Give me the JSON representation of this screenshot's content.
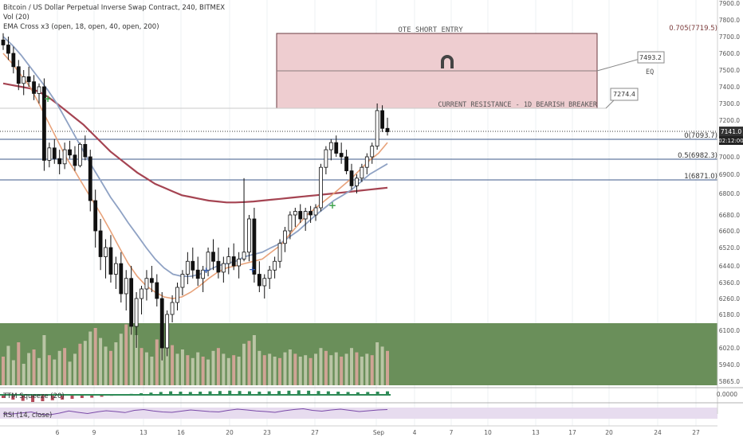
{
  "header": {
    "symbol_line": "Bitcoin / US Dollar Perpetual Inverse Swap Contract, 240, BITMEX",
    "indicator_volume": "Vol (20)",
    "indicator_ema": "EMA Cross x3 (open, 18, open, 40, open, 200)"
  },
  "sub_panes": {
    "ttm_squeeze_label": "TTM Squeeze (20)",
    "rsi_label": "RSI (14, close)",
    "ttm_value": "0.0000"
  },
  "colors": {
    "candle": "#111111",
    "ema_fast": "#e8a27a",
    "ema_mid": "#8fa2c4",
    "ema_slow": "#a54452",
    "zone_fill": "#eecdd0",
    "zone_border": "#6b3a40",
    "green_zone": "#6a8f5a",
    "fib_line": "#3d5a8a",
    "volume_bar": "#c8cfb3",
    "volume_bar_red": "#e0a8a0",
    "rsi_band": "#e7dcef",
    "signal_green": "#3fa34d",
    "signal_blue": "#3a5fb0"
  },
  "chart_data": {
    "type": "candlestick",
    "series": "BTC/USD 240 candles",
    "y_axis": {
      "min": 5865,
      "max": 7900,
      "tick_labels": [
        "7900.0",
        "7800.0",
        "7700.0",
        "7600.0",
        "7500.0",
        "7400.0",
        "7300.0",
        "7200.0",
        "7141.0",
        "02:12:00",
        "7000.0",
        "6900.0",
        "6800.0",
        "6680.0",
        "6600.0",
        "6520.0",
        "6440.0",
        "6360.0",
        "6260.0",
        "6180.0",
        "6100.0",
        "6020.0",
        "5940.0",
        "5865.0"
      ]
    },
    "x_axis": {
      "tick_labels": [
        "6",
        "9",
        "13",
        "16",
        "20",
        "23",
        "27",
        "Sep",
        "4",
        "7",
        "10",
        "13",
        "17",
        "20",
        "24",
        "27"
      ]
    },
    "current_price": "7141.0",
    "countdown": "02:12:00",
    "zones": [
      {
        "name": "OTE SHORT ENTRY",
        "top": 7719.5,
        "bottom": 7274.4,
        "label": "OTE SHORT ENTRY"
      }
    ],
    "fib_levels": [
      {
        "label": "0.705(7719.5)",
        "value": 7719.5
      },
      {
        "label": "0(7093.7)",
        "value": 7093.7
      },
      {
        "label": "0.5(6982.3)",
        "value": 6982.3
      },
      {
        "label": "1(6871.0)",
        "value": 6871.0
      }
    ],
    "annotations": [
      {
        "text": "7493.2",
        "value": 7493.2
      },
      {
        "text": "EQ",
        "value": 7493.2
      },
      {
        "text": "7274.4",
        "value": 7274.4
      },
      {
        "text": "CURRENT RESISTANCE - 1D BEARISH BREAKER",
        "value": 7274.4
      }
    ],
    "candles": [
      [
        7680,
        7720,
        7620,
        7650
      ],
      [
        7650,
        7700,
        7560,
        7600
      ],
      [
        7600,
        7640,
        7480,
        7520
      ],
      [
        7520,
        7560,
        7380,
        7420
      ],
      [
        7420,
        7500,
        7350,
        7460
      ],
      [
        7460,
        7520,
        7400,
        7430
      ],
      [
        7430,
        7470,
        7320,
        7360
      ],
      [
        7360,
        7420,
        7300,
        7400
      ],
      [
        7400,
        7450,
        6920,
        6980
      ],
      [
        6980,
        7080,
        6940,
        7050
      ],
      [
        7050,
        7100,
        6960,
        6990
      ],
      [
        6990,
        7040,
        6900,
        6960
      ],
      [
        6960,
        7080,
        6930,
        7040
      ],
      [
        7040,
        7090,
        6990,
        7010
      ],
      [
        7010,
        7060,
        6920,
        6950
      ],
      [
        6950,
        7080,
        6940,
        7070
      ],
      [
        7070,
        7120,
        6980,
        7000
      ],
      [
        7000,
        7040,
        6700,
        6760
      ],
      [
        6760,
        6820,
        6520,
        6600
      ],
      [
        6600,
        6660,
        6420,
        6480
      ],
      [
        6480,
        6560,
        6380,
        6520
      ],
      [
        6520,
        6580,
        6360,
        6400
      ],
      [
        6400,
        6480,
        6320,
        6450
      ],
      [
        6450,
        6500,
        6240,
        6290
      ],
      [
        6290,
        6420,
        6200,
        6380
      ],
      [
        6380,
        6440,
        6080,
        6120
      ],
      [
        6120,
        6300,
        6020,
        6260
      ],
      [
        6260,
        6340,
        6180,
        6320
      ],
      [
        6320,
        6420,
        6250,
        6380
      ],
      [
        6380,
        6440,
        6300,
        6360
      ],
      [
        6360,
        6400,
        6220,
        6260
      ],
      [
        6260,
        6300,
        5960,
        6020
      ],
      [
        6020,
        6200,
        5980,
        6180
      ],
      [
        6180,
        6280,
        6140,
        6240
      ],
      [
        6240,
        6360,
        6200,
        6330
      ],
      [
        6330,
        6420,
        6280,
        6400
      ],
      [
        6400,
        6500,
        6350,
        6460
      ],
      [
        6460,
        6520,
        6380,
        6420
      ],
      [
        6420,
        6480,
        6340,
        6380
      ],
      [
        6380,
        6440,
        6300,
        6420
      ],
      [
        6420,
        6520,
        6390,
        6500
      ],
      [
        6500,
        6560,
        6420,
        6460
      ],
      [
        6460,
        6520,
        6380,
        6410
      ],
      [
        6410,
        6480,
        6360,
        6450
      ],
      [
        6450,
        6520,
        6400,
        6480
      ],
      [
        6480,
        6540,
        6420,
        6440
      ],
      [
        6440,
        6500,
        6380,
        6470
      ],
      [
        6470,
        6880,
        6460,
        6500
      ],
      [
        6500,
        6680,
        6460,
        6660
      ],
      [
        6660,
        6720,
        6360,
        6400
      ],
      [
        6400,
        6460,
        6300,
        6340
      ],
      [
        6340,
        6400,
        6260,
        6380
      ],
      [
        6380,
        6440,
        6320,
        6420
      ],
      [
        6420,
        6480,
        6380,
        6460
      ],
      [
        6460,
        6560,
        6430,
        6540
      ],
      [
        6540,
        6620,
        6500,
        6600
      ],
      [
        6600,
        6700,
        6560,
        6680
      ],
      [
        6680,
        6720,
        6620,
        6700
      ],
      [
        6700,
        6740,
        6640,
        6660
      ],
      [
        6660,
        6720,
        6600,
        6700
      ],
      [
        6700,
        6730,
        6640,
        6680
      ],
      [
        6680,
        6740,
        6650,
        6720
      ],
      [
        6720,
        6960,
        6700,
        6940
      ],
      [
        6940,
        7060,
        6900,
        7040
      ],
      [
        7040,
        7100,
        6980,
        7080
      ],
      [
        7080,
        7120,
        7000,
        7020
      ],
      [
        7020,
        7080,
        6960,
        7000
      ],
      [
        7000,
        7040,
        6900,
        6920
      ],
      [
        6920,
        6960,
        6820,
        6840
      ],
      [
        6840,
        6900,
        6800,
        6880
      ],
      [
        6880,
        6960,
        6860,
        6940
      ],
      [
        6940,
        7020,
        6900,
        7000
      ],
      [
        7000,
        7080,
        6960,
        7060
      ],
      [
        7060,
        7300,
        7040,
        7260
      ],
      [
        7260,
        7290,
        7140,
        7160
      ],
      [
        7160,
        7220,
        7120,
        7141
      ]
    ],
    "ema_fast": [
      7600,
      7540,
      7470,
      7400,
      7300,
      7200,
      7100,
      7000,
      6920,
      6840,
      6760,
      6680,
      6600,
      6520,
      6450,
      6390,
      6340,
      6300,
      6270,
      6260,
      6270,
      6300,
      6340,
      6380,
      6410,
      6430,
      6440,
      6450,
      6460,
      6470,
      6500,
      6530,
      6580,
      6630,
      6680,
      6720,
      6760,
      6800,
      6840,
      6880,
      6930,
      6980,
      7020,
      7080
    ],
    "ema_mid": [
      7700,
      7650,
      7590,
      7520,
      7450,
      7380,
      7300,
      7210,
      7120,
      7030,
      6940,
      6860,
      6780,
      6710,
      6640,
      6580,
      6520,
      6470,
      6430,
      6400,
      6390,
      6390,
      6400,
      6420,
      6440,
      6450,
      6460,
      6480,
      6490,
      6500,
      6520,
      6540,
      6570,
      6600,
      6640,
      6680,
      6720,
      6760,
      6790,
      6820,
      6860,
      6900,
      6930,
      6960
    ],
    "ema_slow": [
      7420,
      7410,
      7400,
      7390,
      7370,
      7340,
      7300,
      7260,
      7220,
      7180,
      7130,
      7080,
      7030,
      6990,
      6950,
      6910,
      6880,
      6850,
      6830,
      6810,
      6790,
      6780,
      6770,
      6760,
      6755,
      6750,
      6750,
      6752,
      6755,
      6760,
      6765,
      6770,
      6775,
      6780,
      6785,
      6790,
      6795,
      6800,
      6805,
      6810,
      6815,
      6820,
      6825,
      6830
    ],
    "volume": [
      40,
      55,
      35,
      60,
      30,
      45,
      50,
      38,
      70,
      42,
      36,
      48,
      52,
      33,
      44,
      58,
      62,
      75,
      80,
      66,
      54,
      48,
      60,
      72,
      85,
      90,
      70,
      52,
      46,
      40,
      64,
      95,
      78,
      56,
      44,
      50,
      42,
      38,
      46,
      40,
      36,
      48,
      52,
      44,
      38,
      42,
      40,
      58,
      62,
      70,
      48,
      42,
      44,
      40,
      38,
      46,
      50,
      44,
      40,
      42,
      38,
      44,
      52,
      48,
      42,
      46,
      40,
      44,
      52,
      46,
      40,
      44,
      42,
      60,
      54,
      48
    ],
    "ttm_momentum": [
      -20,
      -30,
      -38,
      -45,
      -40,
      -34,
      -30,
      -25,
      -20,
      -18,
      -12,
      -6,
      0,
      6,
      10,
      14,
      18,
      22,
      20,
      18,
      20,
      22,
      24,
      26,
      24,
      22,
      20,
      22,
      24,
      26,
      28,
      26,
      24,
      22,
      20,
      18,
      16,
      18,
      20,
      22
    ],
    "rsi": [
      42,
      40,
      45,
      50,
      38,
      36,
      44,
      55,
      48,
      42,
      50,
      56,
      52,
      47,
      58,
      62,
      55,
      50,
      48,
      54,
      60,
      56,
      52,
      50,
      58,
      64,
      60,
      55,
      52,
      48,
      56,
      62,
      66,
      58,
      54,
      60,
      64,
      58,
      52,
      56,
      60,
      62
    ]
  }
}
